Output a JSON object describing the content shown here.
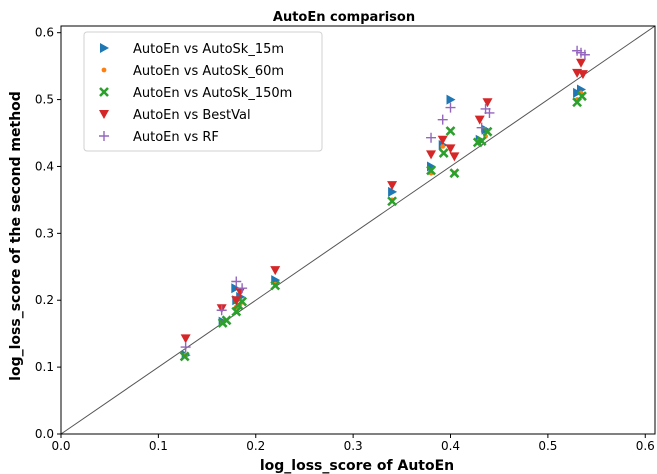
{
  "chart_data": {
    "type": "scatter",
    "title": "AutoEn comparison",
    "xlabel": "log_loss_score of AutoEn",
    "ylabel": "log_loss_score of the second method",
    "xlim": [
      0.0,
      0.61
    ],
    "ylim": [
      0.0,
      0.61
    ],
    "x_ticks": [
      "0.0",
      "0.1",
      "0.2",
      "0.3",
      "0.4",
      "0.5",
      "0.6"
    ],
    "y_ticks": [
      "0.0",
      "0.1",
      "0.2",
      "0.3",
      "0.4",
      "0.5",
      "0.6"
    ],
    "grid": false,
    "legend_position": "top-left",
    "reference_line": "y = x",
    "series": [
      {
        "name": "AutoEn vs AutoSk_15m",
        "marker": "triangle-right",
        "color": "#1f77b4",
        "points": [
          [
            0.128,
            0.118
          ],
          [
            0.166,
            0.168
          ],
          [
            0.179,
            0.218
          ],
          [
            0.18,
            0.2
          ],
          [
            0.184,
            0.205
          ],
          [
            0.22,
            0.23
          ],
          [
            0.34,
            0.362
          ],
          [
            0.38,
            0.4
          ],
          [
            0.392,
            0.432
          ],
          [
            0.4,
            0.5
          ],
          [
            0.43,
            0.44
          ],
          [
            0.436,
            0.455
          ],
          [
            0.53,
            0.51
          ],
          [
            0.534,
            0.515
          ]
        ]
      },
      {
        "name": "AutoEn vs AutoSk_60m",
        "marker": "point",
        "color": "#ff7f0e",
        "points": [
          [
            0.128,
            0.118
          ],
          [
            0.166,
            0.166
          ],
          [
            0.18,
            0.19
          ],
          [
            0.184,
            0.194
          ],
          [
            0.22,
            0.224
          ],
          [
            0.34,
            0.35
          ],
          [
            0.38,
            0.39
          ],
          [
            0.392,
            0.43
          ],
          [
            0.404,
            0.39
          ],
          [
            0.43,
            0.44
          ],
          [
            0.436,
            0.445
          ],
          [
            0.53,
            0.5
          ],
          [
            0.534,
            0.51
          ]
        ]
      },
      {
        "name": "AutoEn vs AutoSk_150m",
        "marker": "x",
        "color": "#2ca02c",
        "points": [
          [
            0.127,
            0.116
          ],
          [
            0.166,
            0.166
          ],
          [
            0.17,
            0.17
          ],
          [
            0.18,
            0.183
          ],
          [
            0.182,
            0.193
          ],
          [
            0.186,
            0.198
          ],
          [
            0.22,
            0.222
          ],
          [
            0.34,
            0.348
          ],
          [
            0.38,
            0.394
          ],
          [
            0.393,
            0.42
          ],
          [
            0.4,
            0.453
          ],
          [
            0.404,
            0.39
          ],
          [
            0.428,
            0.436
          ],
          [
            0.432,
            0.438
          ],
          [
            0.438,
            0.452
          ],
          [
            0.53,
            0.496
          ],
          [
            0.535,
            0.505
          ]
        ]
      },
      {
        "name": "AutoEn vs BestVal",
        "marker": "triangle-down",
        "color": "#d62728",
        "points": [
          [
            0.128,
            0.143
          ],
          [
            0.165,
            0.188
          ],
          [
            0.18,
            0.2
          ],
          [
            0.184,
            0.213
          ],
          [
            0.22,
            0.245
          ],
          [
            0.34,
            0.372
          ],
          [
            0.38,
            0.418
          ],
          [
            0.392,
            0.44
          ],
          [
            0.4,
            0.427
          ],
          [
            0.404,
            0.415
          ],
          [
            0.43,
            0.47
          ],
          [
            0.438,
            0.496
          ],
          [
            0.53,
            0.54
          ],
          [
            0.534,
            0.555
          ],
          [
            0.536,
            0.538
          ]
        ]
      },
      {
        "name": "AutoEn vs RF",
        "marker": "plus",
        "color": "#9467bd",
        "points": [
          [
            0.128,
            0.13
          ],
          [
            0.165,
            0.185
          ],
          [
            0.18,
            0.228
          ],
          [
            0.186,
            0.218
          ],
          [
            0.38,
            0.443
          ],
          [
            0.392,
            0.47
          ],
          [
            0.4,
            0.488
          ],
          [
            0.432,
            0.458
          ],
          [
            0.436,
            0.486
          ],
          [
            0.44,
            0.48
          ],
          [
            0.53,
            0.573
          ],
          [
            0.534,
            0.57
          ],
          [
            0.538,
            0.567
          ]
        ]
      }
    ]
  }
}
